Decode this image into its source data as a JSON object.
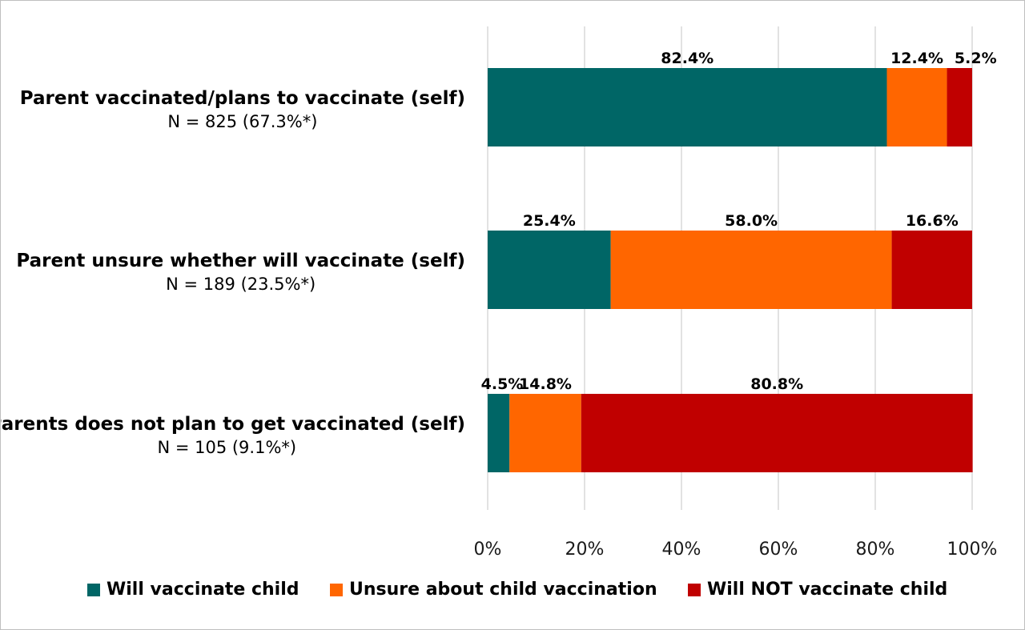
{
  "chart_data": {
    "type": "bar",
    "orientation": "horizontal",
    "stacked": true,
    "categories": [
      {
        "label": "Parent vaccinated/plans to vaccinate (self)",
        "sublabel": "N = 825 (67.3%*)"
      },
      {
        "label": "Parent unsure whether will vaccinate (self)",
        "sublabel": "N = 189 (23.5%*)"
      },
      {
        "label": "Parents does not plan to get vaccinated (self)",
        "sublabel": "N = 105 (9.1%*)"
      }
    ],
    "series": [
      {
        "name": "Will vaccinate child",
        "color": "#006666",
        "values": [
          82.4,
          25.4,
          4.5
        ],
        "labels": [
          "82.4%",
          "25.4%",
          "4.5%"
        ]
      },
      {
        "name": "Unsure about child vaccination",
        "color": "#FF6600",
        "values": [
          12.4,
          58.0,
          14.8
        ],
        "labels": [
          "12.4%",
          "58.0%",
          "14.8%"
        ]
      },
      {
        "name": "Will NOT vaccinate child",
        "color": "#C00000",
        "values": [
          5.2,
          16.6,
          80.8
        ],
        "labels": [
          "5.2%",
          "16.6%",
          "80.8%"
        ]
      }
    ],
    "xlim": [
      0,
      100
    ],
    "xticks": [
      0,
      20,
      40,
      60,
      80,
      100
    ],
    "xtick_labels": [
      "0%",
      "20%",
      "40%",
      "60%",
      "80%",
      "100%"
    ],
    "grid": "vertical",
    "legend_position": "bottom"
  }
}
